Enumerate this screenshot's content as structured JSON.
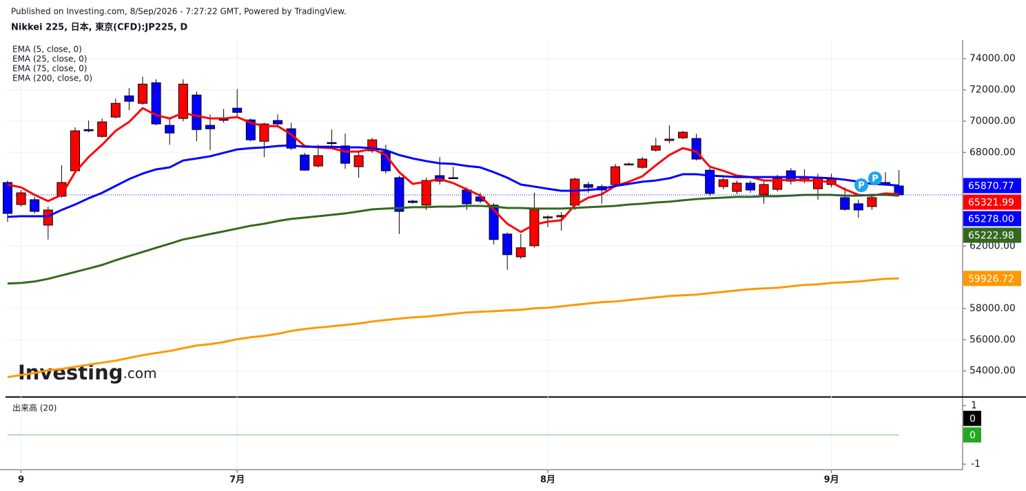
{
  "source_note": "Published on Investing.com, 8/Sep/2026 - 7:27:22 GMT, Powered by TradingView.",
  "chart_data": [
    {
      "type": "candlestick",
      "title": "Nikkei 225, 日本, 東京(CFD):JP225, D",
      "watermark": [
        "Investing",
        ".com"
      ],
      "categories": [
        null,
        "9",
        null,
        null,
        null,
        null,
        null,
        null,
        null,
        null,
        null,
        null,
        null,
        null,
        null,
        null,
        null,
        "7月",
        null,
        null,
        null,
        null,
        null,
        null,
        null,
        null,
        null,
        null,
        null,
        null,
        null,
        null,
        null,
        null,
        null,
        null,
        null,
        null,
        null,
        null,
        "8月",
        null,
        null,
        null,
        null,
        null,
        null,
        null,
        null,
        null,
        null,
        null,
        null,
        null,
        null,
        null,
        null,
        null,
        null,
        null,
        null,
        "9月",
        null,
        null,
        null,
        null,
        null
      ],
      "open": [
        66070,
        64660,
        64970,
        63340,
        65190,
        66820,
        69460,
        69020,
        70260,
        71620,
        71140,
        72460,
        69730,
        70170,
        71670,
        69730,
        70120,
        70830,
        70080,
        68710,
        70040,
        69510,
        67830,
        67130,
        68630,
        68410,
        67080,
        68100,
        68050,
        66380,
        64880,
        64620,
        66510,
        66380,
        65590,
        65150,
        64620,
        62770,
        61310,
        62020,
        63820,
        63870,
        64620,
        65940,
        65810,
        65940,
        67220,
        67040,
        68140,
        68760,
        68930,
        68890,
        66860,
        65810,
        65500,
        66030,
        65280,
        65630,
        66820,
        66160,
        65670,
        65940,
        65100,
        64710,
        64530,
        66070,
        65850
      ],
      "high": [
        66200,
        65590,
        65150,
        64530,
        67170,
        69600,
        70040,
        70170,
        71440,
        72110,
        72850,
        72680,
        70170,
        72680,
        71890,
        70430,
        70780,
        72060,
        70170,
        69900,
        70430,
        69900,
        67970,
        68490,
        69460,
        69200,
        68050,
        68930,
        68490,
        66510,
        64970,
        66380,
        67700,
        67080,
        65760,
        65410,
        64750,
        62860,
        62770,
        65410,
        63960,
        64180,
        66380,
        66120,
        65940,
        67260,
        67350,
        67700,
        68930,
        69730,
        69380,
        69200,
        67000,
        66380,
        66200,
        66200,
        66120,
        66560,
        67000,
        66910,
        66640,
        66640,
        65760,
        64970,
        65230,
        66730,
        66860
      ],
      "low": [
        63560,
        64530,
        64090,
        62420,
        65100,
        66730,
        69290,
        68930,
        70170,
        70700,
        71050,
        69730,
        68490,
        69990,
        68710,
        68140,
        69900,
        70260,
        68710,
        67700,
        69600,
        68140,
        66820,
        67040,
        68410,
        66950,
        66380,
        67970,
        66640,
        62770,
        64710,
        64310,
        65940,
        66290,
        64310,
        64750,
        62110,
        60480,
        61180,
        61890,
        63210,
        62990,
        64310,
        65410,
        64710,
        65760,
        67170,
        66950,
        68050,
        68580,
        68850,
        67480,
        65230,
        65630,
        65320,
        65410,
        64710,
        65500,
        65940,
        66030,
        64970,
        65760,
        64270,
        63820,
        64310,
        65850,
        65230
      ],
      "close": [
        64090,
        65410,
        64220,
        64310,
        66070,
        69380,
        69380,
        69950,
        71140,
        71270,
        72370,
        69820,
        69240,
        72370,
        69460,
        69510,
        70080,
        70560,
        68800,
        69820,
        69820,
        68270,
        66860,
        67790,
        68580,
        67300,
        67790,
        68800,
        66820,
        64220,
        64790,
        66200,
        66160,
        66340,
        64710,
        64880,
        62420,
        61450,
        61890,
        64350,
        63870,
        63960,
        66290,
        65760,
        65590,
        67080,
        67260,
        67570,
        68410,
        68850,
        69290,
        67570,
        65370,
        66250,
        66030,
        65590,
        65940,
        66340,
        66160,
        66420,
        66380,
        66290,
        64350,
        64310,
        65100,
        65940,
        65278
      ],
      "up_color": "#ff0000",
      "down_color": "#0000ff",
      "series": [
        {
          "name": "EMA (5, close, 0)",
          "color": "#ff0000",
          "values": [
            65940,
            65760,
            65280,
            64880,
            65280,
            66730,
            67700,
            68490,
            69380,
            69950,
            70830,
            70390,
            70170,
            70520,
            70340,
            70170,
            70170,
            70260,
            69900,
            69680,
            69680,
            69150,
            68410,
            68320,
            68270,
            68050,
            68050,
            68230,
            67830,
            66730,
            65980,
            66120,
            66290,
            66030,
            65630,
            65230,
            64310,
            63430,
            62900,
            63380,
            63560,
            63650,
            64620,
            65100,
            65320,
            65850,
            66120,
            66470,
            67170,
            67830,
            68270,
            68050,
            67080,
            66820,
            66510,
            66420,
            66200,
            66200,
            66250,
            66200,
            66200,
            66070,
            65630,
            65280,
            65230,
            65370,
            65321.99
          ]
        },
        {
          "name": "EMA (25, close, 0)",
          "color": "#0000ff",
          "values": [
            63870,
            63910,
            63910,
            63910,
            64310,
            64660,
            65060,
            65410,
            65850,
            66290,
            66640,
            66910,
            67040,
            67480,
            67610,
            67750,
            67970,
            68190,
            68270,
            68320,
            68410,
            68450,
            68360,
            68360,
            68360,
            68320,
            68320,
            68270,
            68140,
            67830,
            67610,
            67440,
            67300,
            67260,
            67130,
            67040,
            66730,
            66380,
            65940,
            65810,
            65670,
            65540,
            65540,
            65590,
            65670,
            65850,
            65980,
            66120,
            66200,
            66340,
            66600,
            66600,
            66510,
            66470,
            66420,
            66420,
            66420,
            66420,
            66420,
            66420,
            66380,
            66340,
            66250,
            66120,
            65980,
            65940,
            65870.77
          ]
        },
        {
          "name": "EMA (75, close, 0)",
          "color": "#33691e",
          "values": [
            59600,
            59640,
            59730,
            59900,
            60120,
            60340,
            60560,
            60790,
            61090,
            61360,
            61620,
            61890,
            62150,
            62420,
            62590,
            62770,
            62940,
            63120,
            63300,
            63430,
            63600,
            63740,
            63820,
            63910,
            64000,
            64090,
            64220,
            64350,
            64400,
            64440,
            64490,
            64490,
            64530,
            64530,
            64570,
            64570,
            64530,
            64440,
            64440,
            64400,
            64400,
            64400,
            64440,
            64490,
            64530,
            64570,
            64660,
            64710,
            64790,
            64840,
            64930,
            65010,
            65060,
            65100,
            65150,
            65150,
            65190,
            65190,
            65230,
            65280,
            65280,
            65280,
            65230,
            65230,
            65280,
            65280,
            65222.98
          ]
        },
        {
          "name": "EMA (200, close, 0)",
          "color": "#ff9800",
          "values": [
            53610,
            53740,
            53870,
            54050,
            54130,
            54270,
            54400,
            54530,
            54660,
            54840,
            55010,
            55150,
            55280,
            55460,
            55630,
            55720,
            55850,
            56030,
            56160,
            56250,
            56380,
            56560,
            56690,
            56780,
            56860,
            56950,
            57040,
            57170,
            57260,
            57350,
            57440,
            57480,
            57570,
            57660,
            57750,
            57790,
            57830,
            57880,
            57920,
            58010,
            58050,
            58140,
            58230,
            58320,
            58410,
            58450,
            58540,
            58630,
            58710,
            58800,
            58850,
            58890,
            58980,
            59070,
            59160,
            59240,
            59290,
            59330,
            59420,
            59510,
            59550,
            59640,
            59680,
            59730,
            59820,
            59900,
            59926.72
          ]
        }
      ],
      "ylim": [
        52400,
        75200
      ],
      "yticks": [
        {
          "value": 54000,
          "label": "54000.00"
        },
        {
          "value": 56000,
          "label": "56000.00"
        },
        {
          "value": 58000,
          "label": "58000.00"
        },
        {
          "value": 62000,
          "label": "62000.00"
        },
        {
          "value": 68000,
          "label": "68000.00"
        },
        {
          "value": 70000,
          "label": "70000.00"
        },
        {
          "value": 72000,
          "label": "72000.00"
        },
        {
          "value": 74000,
          "label": "74000.00"
        }
      ],
      "grid": true,
      "price_labels": [
        {
          "value": 65870.77,
          "label": "65870.77",
          "color": "#0000ff"
        },
        {
          "value": 65321.99,
          "label": "65321.99",
          "color": "#ff0000"
        },
        {
          "value": 65278,
          "label": "65278.00",
          "color": "#0000ff"
        },
        {
          "value": 65222.98,
          "label": "65222.98",
          "color": "#33691e"
        },
        {
          "value": 59926.72,
          "label": "59926.72",
          "color": "#ff9800"
        }
      ],
      "event_markers": [
        "P",
        "P"
      ]
    },
    {
      "type": "line",
      "title": "出来高 (20)",
      "series": [
        {
          "color": "#e0b0b0",
          "values": [
            0,
            0,
            0,
            0,
            0,
            0,
            0,
            0,
            0,
            0,
            0,
            0,
            0,
            0,
            0,
            0,
            0,
            0,
            0,
            0,
            0,
            0,
            0,
            0,
            0,
            0,
            0,
            0,
            0,
            0,
            0,
            0,
            0,
            0,
            0,
            0,
            0,
            0,
            0,
            0,
            0,
            0,
            0,
            0,
            0,
            0,
            0,
            0,
            0,
            0,
            0,
            0,
            0,
            0,
            0,
            0,
            0,
            0,
            0,
            0,
            0,
            0,
            0,
            0,
            0,
            0,
            0
          ]
        },
        {
          "color": "#a8d8a8",
          "values": [
            0,
            0,
            0,
            0,
            0,
            0,
            0,
            0,
            0,
            0,
            0,
            0,
            0,
            0,
            0,
            0,
            0,
            0,
            0,
            0,
            0,
            0,
            0,
            0,
            0,
            0,
            0,
            0,
            0,
            0,
            0,
            0,
            0,
            0,
            0,
            0,
            0,
            0,
            0,
            0,
            0,
            0,
            0,
            0,
            0,
            0,
            0,
            0,
            0,
            0,
            0,
            0,
            0,
            0,
            0,
            0,
            0,
            0,
            0,
            0,
            0,
            0,
            0,
            0,
            0,
            0,
            0
          ]
        }
      ],
      "ylim": [
        -1.14,
        1.26
      ],
      "yticks": [
        1,
        -1
      ],
      "price_labels": [
        {
          "value": 0,
          "label": "0",
          "color": "#000000"
        },
        {
          "value": 0,
          "label": "0",
          "color": "#22a822"
        }
      ]
    }
  ]
}
